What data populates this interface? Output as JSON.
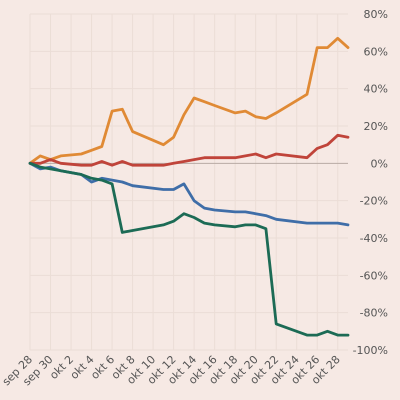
{
  "chart_data": {
    "type": "line",
    "title": "",
    "xlabel": "",
    "ylabel": "",
    "ylim": [
      -100,
      80
    ],
    "y_ticks": [
      80,
      60,
      40,
      20,
      0,
      -20,
      -40,
      -60,
      -80,
      -100
    ],
    "y_tick_labels": [
      "80%",
      "60%",
      "40%",
      "20%",
      "0%",
      "-20%",
      "-40%",
      "-60%",
      "-80%",
      "-100%"
    ],
    "x_ticks": [
      "2024-09-28",
      "2024-09-30",
      "2024-10-02",
      "2024-10-04",
      "2024-10-06",
      "2024-10-08",
      "2024-10-10",
      "2024-10-12",
      "2024-10-14",
      "2024-10-16",
      "2024-10-18",
      "2024-10-20",
      "2024-10-22",
      "2024-10-24",
      "2024-10-26",
      "2024-10-28"
    ],
    "x_tick_labels": [
      "sep 28",
      "sep 30",
      "okt 2",
      "okt 4",
      "okt 6",
      "okt 8",
      "okt 10",
      "okt 12",
      "okt 14",
      "okt 16",
      "okt 18",
      "okt 20",
      "okt 22",
      "okt 24",
      "okt 26",
      "okt 28"
    ],
    "grid": true,
    "y_axis_position": "right",
    "x": [
      "2024-09-28",
      "2024-09-29",
      "2024-09-30",
      "2024-10-01",
      "2024-10-03",
      "2024-10-04",
      "2024-10-05",
      "2024-10-06",
      "2024-10-07",
      "2024-10-08",
      "2024-10-11",
      "2024-10-12",
      "2024-10-13",
      "2024-10-14",
      "2024-10-15",
      "2024-10-16",
      "2024-10-18",
      "2024-10-19",
      "2024-10-20",
      "2024-10-21",
      "2024-10-22",
      "2024-10-25",
      "2024-10-26",
      "2024-10-27",
      "2024-10-28",
      "2024-10-29"
    ],
    "series": [
      {
        "color": "#e08a35",
        "values": [
          0,
          4,
          2,
          4,
          5,
          7,
          9,
          28,
          29,
          17,
          10,
          14,
          26,
          35,
          33,
          31,
          27,
          28,
          25,
          24,
          27,
          37,
          62,
          62,
          67,
          62
        ]
      },
      {
        "color": "#c0443a",
        "values": [
          0,
          0,
          2,
          0,
          -1,
          -1,
          1,
          -1,
          1,
          -1,
          -1,
          0,
          1,
          2,
          3,
          3,
          3,
          4,
          5,
          3,
          5,
          3,
          8,
          10,
          15,
          14
        ]
      },
      {
        "color": "#3f6ea8",
        "values": [
          0,
          -3,
          -2,
          -4,
          -6,
          -10,
          -8,
          -9,
          -10,
          -12,
          -14,
          -14,
          -11,
          -20,
          -24,
          -25,
          -26,
          -26,
          -27,
          -28,
          -30,
          -32,
          -32,
          -32,
          -32,
          -33
        ]
      },
      {
        "color": "#1c6b55",
        "values": [
          0,
          -2,
          -3,
          -4,
          -6,
          -8,
          -9,
          -11,
          -37,
          -36,
          -33,
          -31,
          -27,
          -29,
          -32,
          -33,
          -34,
          -33,
          -33,
          -35,
          -86,
          -92,
          -92,
          -90,
          -92,
          -92
        ]
      }
    ]
  }
}
